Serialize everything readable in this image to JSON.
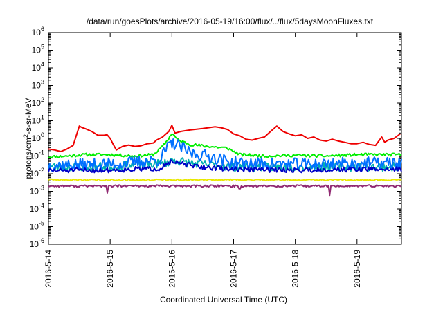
{
  "chart_data": {
    "type": "line",
    "title": "/data/run/goesPlots/archive/2016-05-19/16:00/flux/../flux/5daysMoonFluxes.txt",
    "xlabel": "Coordinated Universal Time (UTC)",
    "ylabel_base": "protons/cm",
    "ylabel_sup": "2",
    "ylabel_rest": "-s-sr-MeV",
    "y_scale": "log",
    "ylim": [
      1e-06,
      1000000
    ],
    "y_ticks": [
      {
        "base": "10",
        "exp": "-6",
        "value": 1e-06
      },
      {
        "base": "10",
        "exp": "-5",
        "value": 1e-05
      },
      {
        "base": "10",
        "exp": "-4",
        "value": 0.0001
      },
      {
        "base": "10",
        "exp": "-3",
        "value": 0.001
      },
      {
        "base": "10",
        "exp": "-2",
        "value": 0.01
      },
      {
        "base": "10",
        "exp": "-1",
        "value": 0.1
      },
      {
        "base": "10",
        "exp": "0",
        "value": 1
      },
      {
        "base": "10",
        "exp": "1",
        "value": 10
      },
      {
        "base": "10",
        "exp": "2",
        "value": 100
      },
      {
        "base": "10",
        "exp": "3",
        "value": 1000
      },
      {
        "base": "10",
        "exp": "4",
        "value": 10000
      },
      {
        "base": "10",
        "exp": "5",
        "value": 100000
      },
      {
        "base": "10",
        "exp": "6",
        "value": 1000000
      }
    ],
    "x_unit": "days",
    "xlim": [
      0,
      5.72
    ],
    "x_ticks": [
      {
        "label": "2016-5-14",
        "value": 0
      },
      {
        "label": "2016-5-15",
        "value": 1
      },
      {
        "label": "2016-5-16",
        "value": 2
      },
      {
        "label": "2016-5-17",
        "value": 3
      },
      {
        "label": "2016-5-18",
        "value": 4
      },
      {
        "label": "2016-5-19",
        "value": 5
      }
    ],
    "grid": false,
    "legend": "none",
    "series": [
      {
        "color": "#ee0000",
        "points": [
          [
            0,
            0.25
          ],
          [
            0.1,
            0.22
          ],
          [
            0.2,
            0.18
          ],
          [
            0.3,
            0.25
          ],
          [
            0.4,
            0.4
          ],
          [
            0.5,
            5
          ],
          [
            0.55,
            4
          ],
          [
            0.6,
            3.5
          ],
          [
            0.7,
            2.5
          ],
          [
            0.8,
            1.5
          ],
          [
            0.9,
            1.5
          ],
          [
            0.95,
            1.6
          ],
          [
            1.0,
            1.0
          ],
          [
            1.05,
            0.45
          ],
          [
            1.1,
            0.22
          ],
          [
            1.2,
            0.35
          ],
          [
            1.3,
            0.42
          ],
          [
            1.4,
            0.35
          ],
          [
            1.5,
            0.38
          ],
          [
            1.6,
            0.5
          ],
          [
            1.7,
            0.55
          ],
          [
            1.75,
            0.8
          ],
          [
            1.85,
            1.2
          ],
          [
            1.95,
            2.5
          ],
          [
            2.0,
            5.5
          ],
          [
            2.05,
            2.0
          ],
          [
            2.15,
            2.5
          ],
          [
            2.3,
            3.0
          ],
          [
            2.5,
            3.6
          ],
          [
            2.7,
            4.5
          ],
          [
            2.8,
            4.0
          ],
          [
            2.9,
            3.2
          ],
          [
            3.0,
            1.8
          ],
          [
            3.1,
            1.4
          ],
          [
            3.2,
            0.9
          ],
          [
            3.3,
            0.8
          ],
          [
            3.4,
            1.0
          ],
          [
            3.5,
            1.2
          ],
          [
            3.6,
            2.5
          ],
          [
            3.7,
            5.0
          ],
          [
            3.8,
            2.5
          ],
          [
            3.9,
            1.8
          ],
          [
            4.0,
            1.4
          ],
          [
            4.1,
            1.6
          ],
          [
            4.2,
            1.0
          ],
          [
            4.3,
            1.2
          ],
          [
            4.4,
            0.8
          ],
          [
            4.5,
            0.7
          ],
          [
            4.6,
            0.9
          ],
          [
            4.7,
            0.7
          ],
          [
            4.8,
            0.6
          ],
          [
            4.9,
            0.5
          ],
          [
            5.0,
            0.5
          ],
          [
            5.1,
            0.6
          ],
          [
            5.2,
            0.45
          ],
          [
            5.3,
            0.4
          ],
          [
            5.4,
            1.2
          ],
          [
            5.45,
            0.6
          ],
          [
            5.5,
            0.8
          ],
          [
            5.6,
            1.0
          ],
          [
            5.7,
            1.8
          ]
        ]
      },
      {
        "color": "#00ee00",
        "center": [
          [
            0,
            0.09
          ],
          [
            0.3,
            0.1
          ],
          [
            0.6,
            0.12
          ],
          [
            1.0,
            0.12
          ],
          [
            1.4,
            0.1
          ],
          [
            1.7,
            0.12
          ],
          [
            1.85,
            0.35
          ],
          [
            1.95,
            1.0
          ],
          [
            2.0,
            2.0
          ],
          [
            2.1,
            0.8
          ],
          [
            2.3,
            0.45
          ],
          [
            2.6,
            0.35
          ],
          [
            2.9,
            0.28
          ],
          [
            3.1,
            0.12
          ],
          [
            3.5,
            0.1
          ],
          [
            4.0,
            0.11
          ],
          [
            4.5,
            0.1
          ],
          [
            5.0,
            0.12
          ],
          [
            5.7,
            0.12
          ]
        ],
        "jitter": 0.08,
        "seed": 11
      },
      {
        "color": "#00b0b0",
        "center": [
          [
            0,
            0.025
          ],
          [
            1.0,
            0.025
          ],
          [
            1.9,
            0.04
          ],
          [
            2.0,
            0.06
          ],
          [
            2.3,
            0.04
          ],
          [
            3.0,
            0.025
          ],
          [
            4.0,
            0.025
          ],
          [
            5.7,
            0.025
          ]
        ],
        "jitter": 0.25,
        "seed": 23
      },
      {
        "color": "#0070ff",
        "center": [
          [
            0,
            0.03
          ],
          [
            1.0,
            0.035
          ],
          [
            1.8,
            0.06
          ],
          [
            1.95,
            0.4
          ],
          [
            2.05,
            0.5
          ],
          [
            2.3,
            0.15
          ],
          [
            2.6,
            0.1
          ],
          [
            3.0,
            0.04
          ],
          [
            4.0,
            0.035
          ],
          [
            5.0,
            0.04
          ],
          [
            5.7,
            0.04
          ]
        ],
        "jitter": 0.35,
        "seed": 37
      },
      {
        "color": "#0000c8",
        "center": [
          [
            0,
            0.015
          ],
          [
            1.0,
            0.016
          ],
          [
            1.8,
            0.02
          ],
          [
            1.95,
            0.045
          ],
          [
            2.1,
            0.04
          ],
          [
            2.4,
            0.025
          ],
          [
            3.0,
            0.018
          ],
          [
            4.0,
            0.016
          ],
          [
            5.0,
            0.018
          ],
          [
            5.7,
            0.018
          ]
        ],
        "jitter": 0.14,
        "seed": 51
      },
      {
        "color": "#e8e800",
        "center": [
          [
            0,
            0.0045
          ],
          [
            5.7,
            0.0045
          ]
        ],
        "jitter": 0.04,
        "seed": 63
      },
      {
        "color": "#902a72",
        "center": [
          [
            0,
            0.002
          ],
          [
            5.7,
            0.002
          ]
        ],
        "jitter": 0.06,
        "seed": 77,
        "dips": [
          [
            0.95,
            0.0008
          ],
          [
            3.1,
            0.0014
          ],
          [
            4.55,
            0.0006
          ]
        ]
      }
    ]
  }
}
